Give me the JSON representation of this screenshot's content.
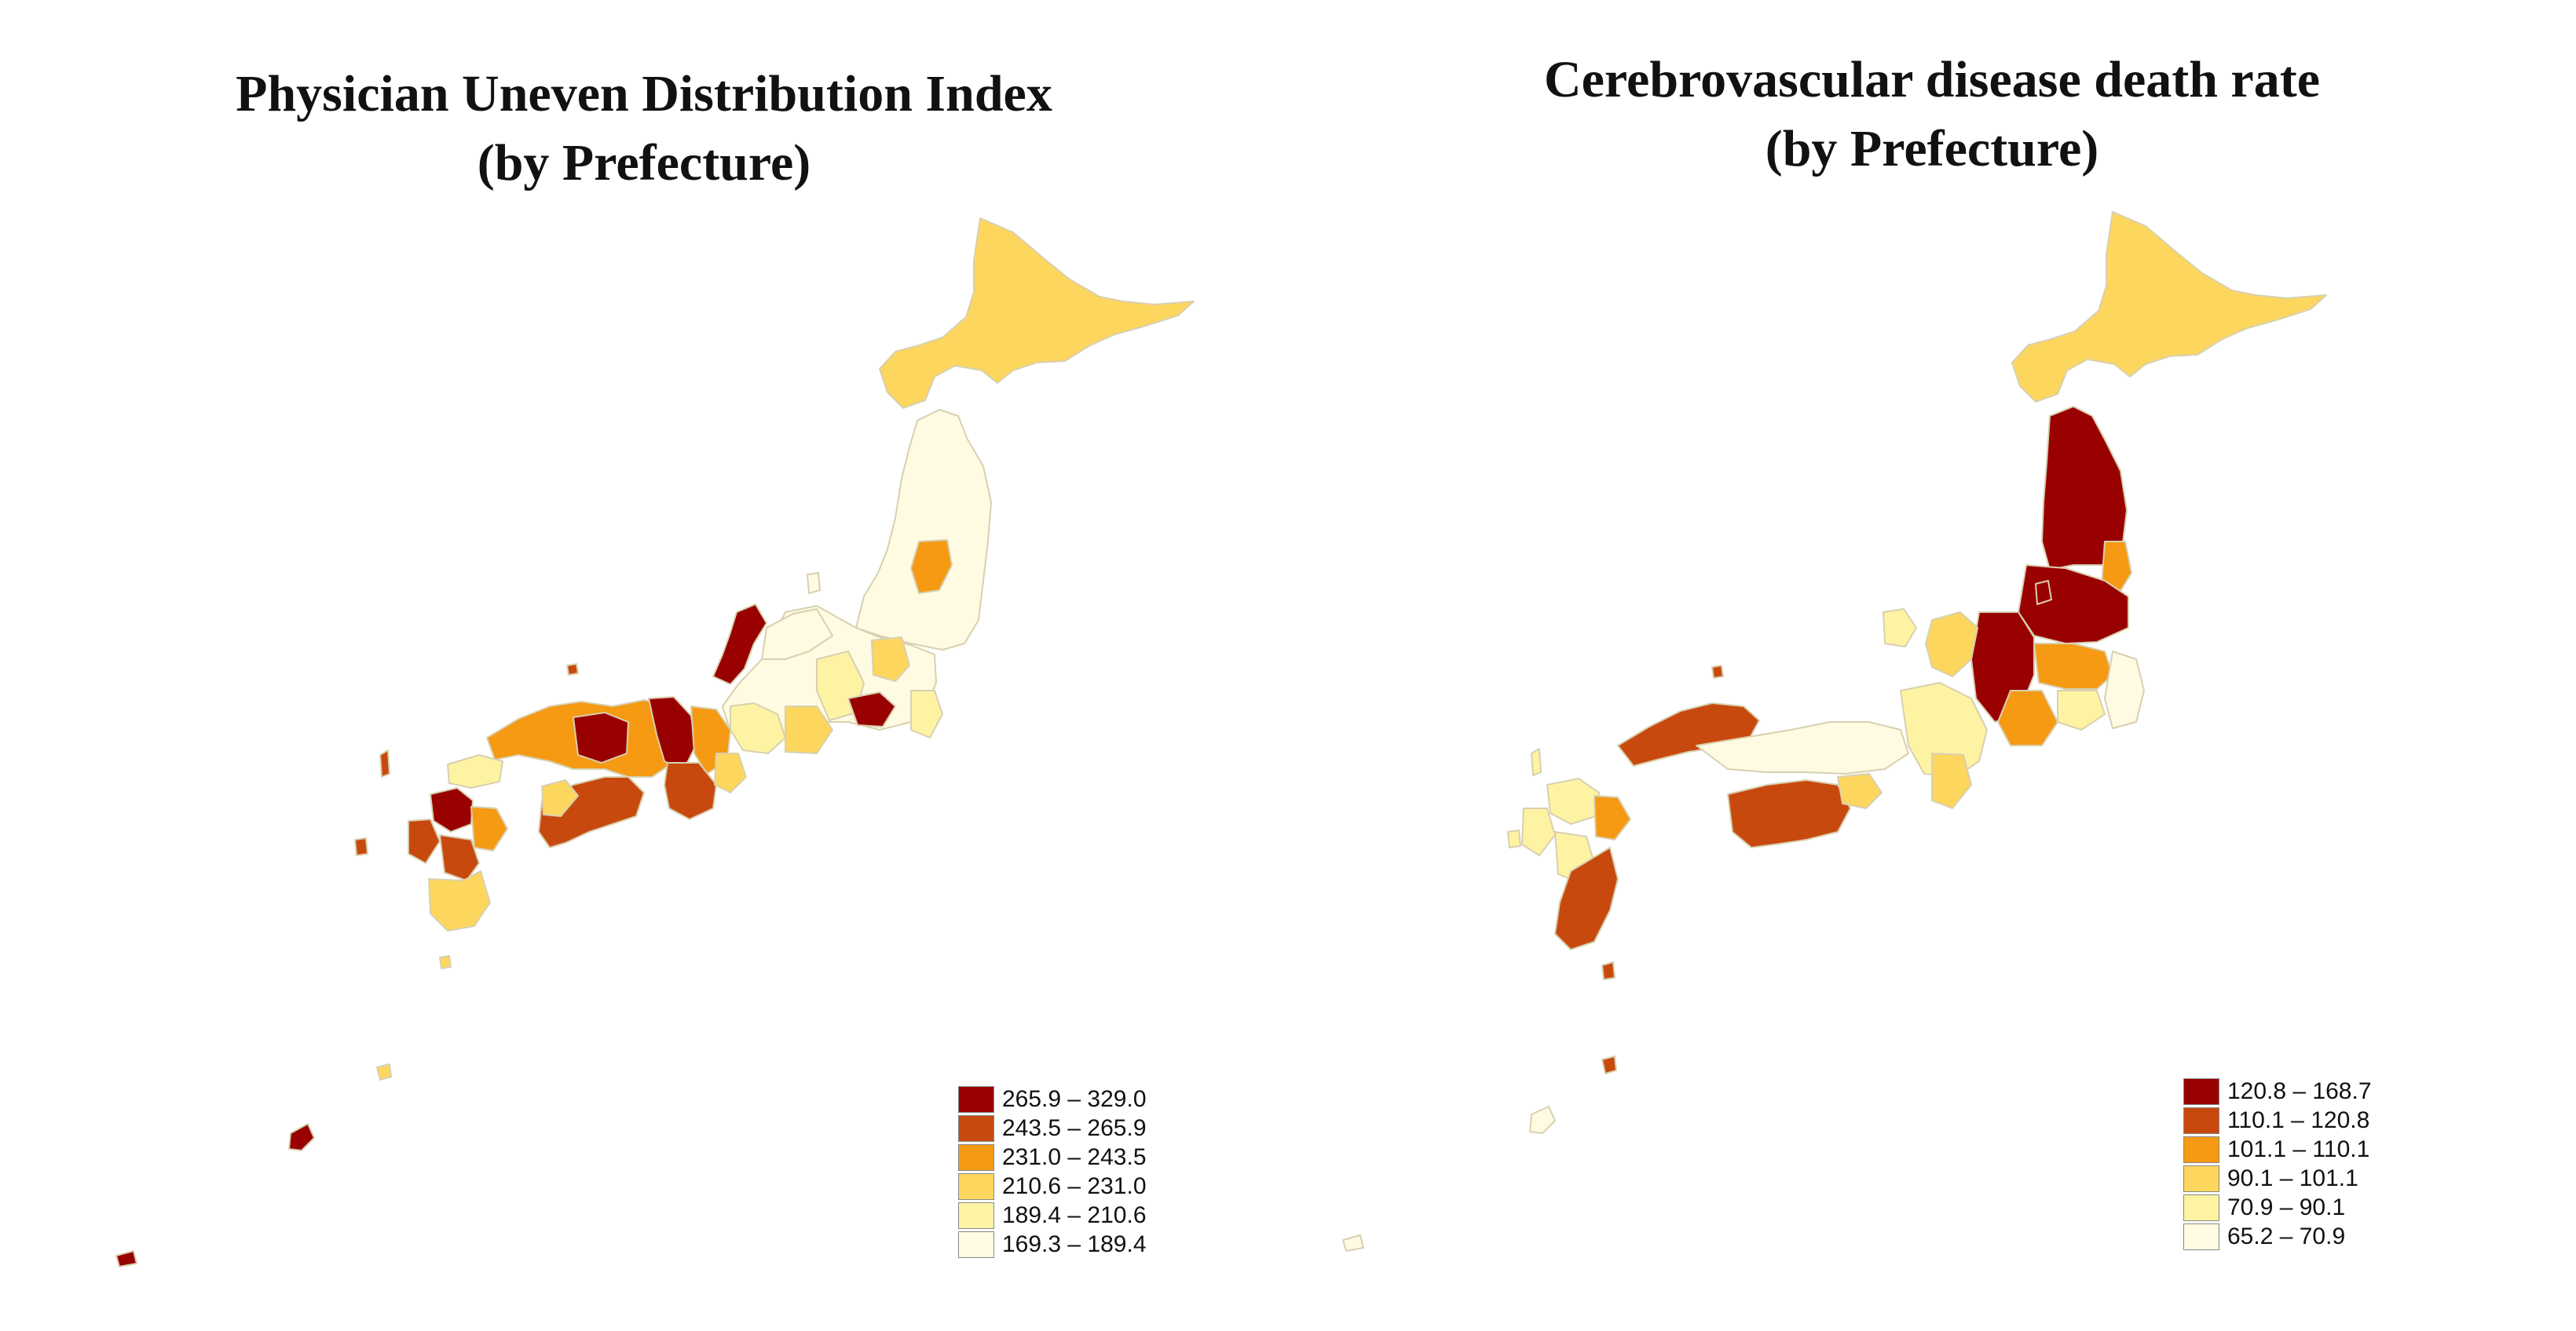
{
  "left_map": {
    "title_line1": "Physician Uneven Distribution Index",
    "title_line2": "(by Prefecture)",
    "legend": [
      {
        "label": "265.9 – 329.0",
        "color": "#990000"
      },
      {
        "label": "243.5 – 265.9",
        "color": "#c8490e"
      },
      {
        "label": "231.0 – 243.5",
        "color": "#f59a12"
      },
      {
        "label": "210.6 – 231.0",
        "color": "#fdd65d"
      },
      {
        "label": "189.4 – 210.6",
        "color": "#fef3a3"
      },
      {
        "label": "169.3 – 189.4",
        "color": "#fefbe2"
      }
    ]
  },
  "right_map": {
    "title_line1": "Cerebrovascular disease death rate",
    "title_line2": "(by Prefecture)",
    "legend": [
      {
        "label": "120.8 – 168.7",
        "color": "#990000"
      },
      {
        "label": "110.1 – 120.8",
        "color": "#c8490e"
      },
      {
        "label": "101.1 – 110.1",
        "color": "#f59a12"
      },
      {
        "label": "90.1 – 101.1",
        "color": "#fdd65d"
      },
      {
        "label": "70.9 – 90.1",
        "color": "#fef3a3"
      },
      {
        "label": "65.2 – 70.9",
        "color": "#fefbe2"
      }
    ]
  }
}
